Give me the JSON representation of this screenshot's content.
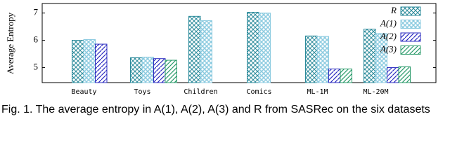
{
  "chart_data": {
    "type": "bar",
    "y_label": "Average Entropy",
    "caption": "Fig. 1. The average entropy in A(1), A(2), A(3) and R from SASRec on the six datasets",
    "categories": [
      "Beauty",
      "Toys",
      "Children",
      "Comics",
      "ML-1M",
      "ML-20M"
    ],
    "series": [
      {
        "name": "R",
        "color": "#2a8a9a",
        "values": [
          6.0,
          5.36,
          6.88,
          7.03,
          6.16,
          6.41
        ]
      },
      {
        "name": "A(1)",
        "color": "#8ccbe0",
        "values": [
          6.03,
          5.38,
          6.72,
          7.0,
          6.14,
          6.25
        ]
      },
      {
        "name": "A(2)",
        "color": "#2b2bc0",
        "values": [
          5.86,
          5.33,
          null,
          null,
          4.95,
          5.0
        ]
      },
      {
        "name": "A(3)",
        "color": "#2a9a6a",
        "values": [
          null,
          5.27,
          null,
          null,
          4.95,
          5.03
        ]
      }
    ],
    "ylim": [
      4.45,
      7.35
    ],
    "yticks": [
      5,
      6,
      7
    ],
    "legend": "upper right"
  }
}
